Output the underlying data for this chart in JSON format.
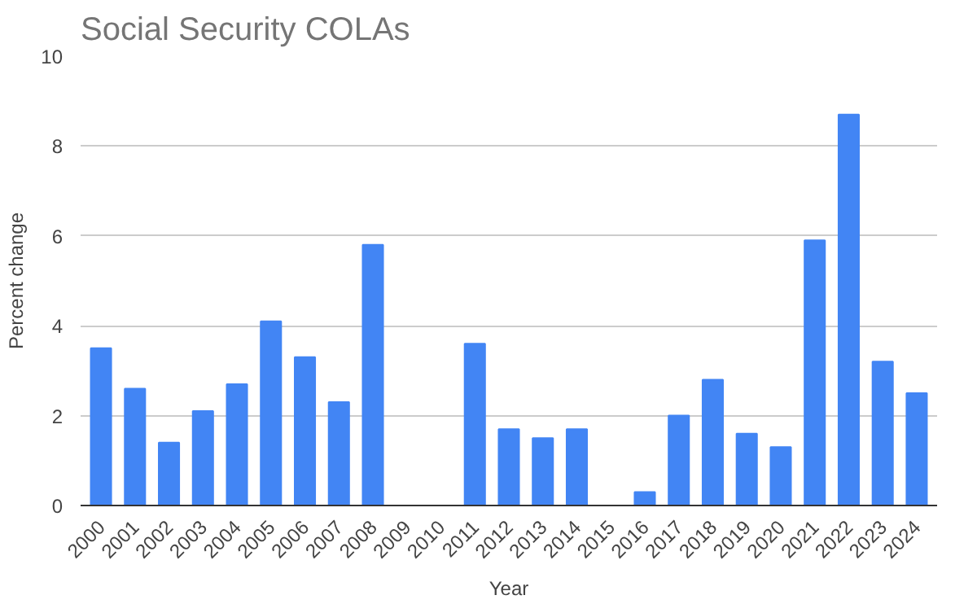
{
  "chart_data": {
    "type": "bar",
    "title": "Social Security COLAs",
    "xlabel": "Year",
    "ylabel": "Percent change",
    "categories": [
      "2000",
      "2001",
      "2002",
      "2003",
      "2004",
      "2005",
      "2006",
      "2007",
      "2008",
      "2009",
      "2010",
      "2011",
      "2012",
      "2013",
      "2014",
      "2015",
      "2016",
      "2017",
      "2018",
      "2019",
      "2020",
      "2021",
      "2022",
      "2023",
      "2024"
    ],
    "values": [
      3.5,
      2.6,
      1.4,
      2.1,
      2.7,
      4.1,
      3.3,
      2.3,
      5.8,
      0,
      0,
      3.6,
      1.7,
      1.5,
      1.7,
      0,
      0.3,
      2.0,
      2.8,
      1.6,
      1.3,
      5.9,
      8.7,
      3.2,
      2.5
    ],
    "color": "#4285f4",
    "ylim": [
      0,
      10
    ],
    "yticks": [
      0,
      2,
      4,
      6,
      8,
      10
    ],
    "grid": "y"
  }
}
